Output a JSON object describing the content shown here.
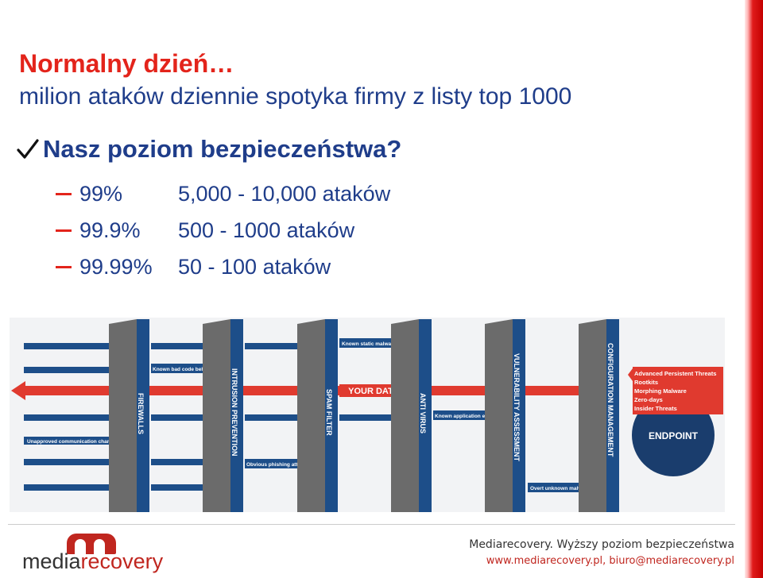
{
  "slide": {
    "title": "Normalny dzień…",
    "subtitle": "milion ataków dziennie spotyka firmy z listy top 1000",
    "question": "Nasz poziom bezpieczeństwa?",
    "levels": [
      {
        "pct": "99%",
        "desc": "5,000 - 10,000 ataków"
      },
      {
        "pct": "99.9%",
        "desc": "500 - 1000 ataków"
      },
      {
        "pct": "99.99%",
        "desc": "50 - 100 ataków"
      }
    ]
  },
  "diagram": {
    "layers": [
      "FIREWALLS",
      "INTRUSION PREVENTION",
      "SPAM FILTER",
      "ANTI VIRUS",
      "VULNERABILITY ASSESSMENT",
      "CONFIGURATION MANAGEMENT"
    ],
    "your_data": "YOUR DATA",
    "endpoint": "ENDPOINT",
    "threats": [
      "Known static malware",
      "Known bad code behaviors",
      "Unapproved communication channels",
      "Known application exploits",
      "Obvious phishing attempts",
      "Overt unknown malware"
    ],
    "advanced_threats": [
      "Advanced Persistent Threats",
      "Rootkits",
      "Morphing Malware",
      "Zero-days",
      "Insider Threats"
    ],
    "colors": {
      "blue": "#1d4e89",
      "red": "#e03a2f",
      "gray": "#6b6b6b",
      "navy": "#1a3d6d"
    }
  },
  "footer": {
    "logo_media": "media",
    "logo_recovery": "recovery",
    "line1": "Mediarecovery. Wyższy poziom bezpieczeństwa",
    "line2": "www.mediarecovery.pl, biuro@mediarecovery.pl"
  }
}
